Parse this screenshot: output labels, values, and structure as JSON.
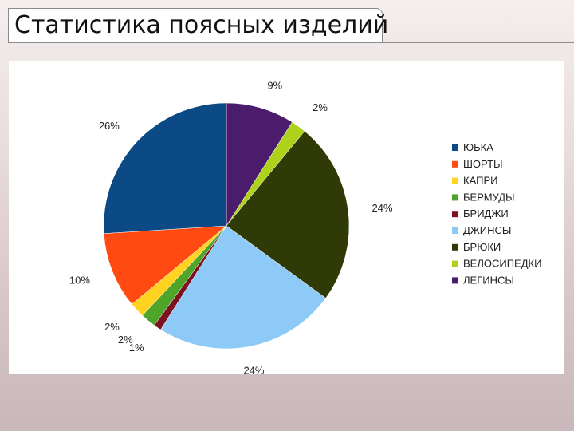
{
  "title": "Статистика поясных изделий",
  "chart_data": {
    "type": "pie",
    "categories": [
      "ЮБКА",
      "ШОРТЫ",
      "КАПРИ",
      "БЕРМУДЫ",
      "БРИДЖИ",
      "ДЖИНСЫ",
      "БРЮКИ",
      "ВЕЛОСИПЕДКИ",
      "ЛЕГИНСЫ"
    ],
    "values": [
      26,
      10,
      2,
      2,
      1,
      24,
      24,
      2,
      9
    ],
    "labels": [
      "26%",
      "10%",
      "2%",
      "2%",
      "1%",
      "24%",
      "24%",
      "2%",
      "9%"
    ],
    "colors": [
      "#0b4a84",
      "#ff4a12",
      "#ffd31f",
      "#4fa52a",
      "#7b1121",
      "#8dcaf7",
      "#2f3a06",
      "#aed21b",
      "#4b1c6c"
    ],
    "legend": "right"
  }
}
